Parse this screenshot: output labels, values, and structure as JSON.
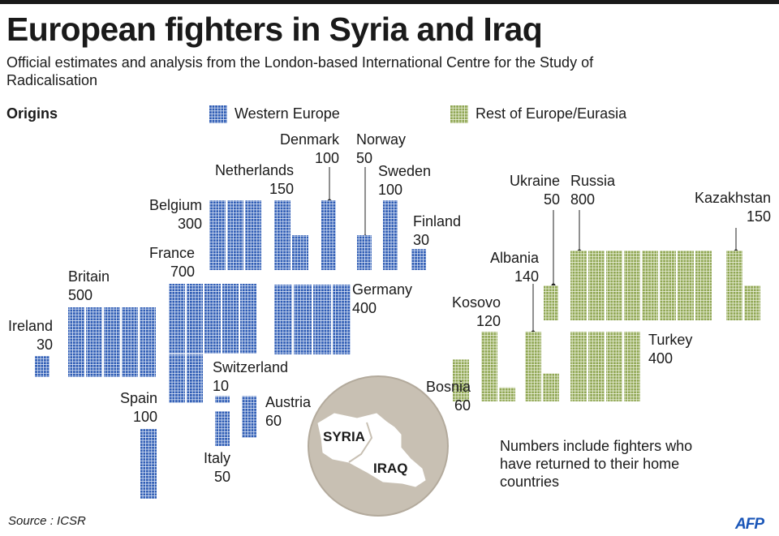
{
  "title": "European fighters in Syria and Iraq",
  "subtitle": "Official estimates and analysis from the London-based International Centre for the Study of Radicalisation",
  "legend": {
    "heading": "Origins",
    "western": "Western Europe",
    "rest": "Rest of Europe/Eurasia"
  },
  "colors": {
    "western": "#2e5cb4",
    "western_bg": "#dde6f6",
    "rest": "#8fa653",
    "rest_bg": "#eef2df",
    "map_circle": "#c8c0b3",
    "map_land": "#ffffff"
  },
  "chart_data": {
    "type": "waffle",
    "unit_note": "each small square represents a number of fighters",
    "series": [
      {
        "name": "Western Europe",
        "countries": [
          {
            "name": "Ireland",
            "value": 30
          },
          {
            "name": "Britain",
            "value": 500
          },
          {
            "name": "Spain",
            "value": 100
          },
          {
            "name": "France",
            "value": 700
          },
          {
            "name": "Belgium",
            "value": 300
          },
          {
            "name": "Netherlands",
            "value": 150
          },
          {
            "name": "Denmark",
            "value": 100
          },
          {
            "name": "Norway",
            "value": 50
          },
          {
            "name": "Sweden",
            "value": 100
          },
          {
            "name": "Finland",
            "value": 30
          },
          {
            "name": "Germany",
            "value": 400
          },
          {
            "name": "Switzerland",
            "value": 10
          },
          {
            "name": "Italy",
            "value": 50
          },
          {
            "name": "Austria",
            "value": 60
          }
        ]
      },
      {
        "name": "Rest of Europe/Eurasia",
        "countries": [
          {
            "name": "Bosnia",
            "value": 60
          },
          {
            "name": "Kosovo",
            "value": 120
          },
          {
            "name": "Albania",
            "value": 140
          },
          {
            "name": "Ukraine",
            "value": 50
          },
          {
            "name": "Russia",
            "value": 800
          },
          {
            "name": "Kazakhstan",
            "value": 150
          },
          {
            "name": "Turkey",
            "value": 400
          }
        ]
      }
    ]
  },
  "labels": {
    "ireland": {
      "name": "Ireland",
      "value": "30"
    },
    "britain": {
      "name": "Britain",
      "value": "500"
    },
    "spain": {
      "name": "Spain",
      "value": "100"
    },
    "france": {
      "name": "France",
      "value": "700"
    },
    "belgium": {
      "name": "Belgium",
      "value": "300"
    },
    "netherlands": {
      "name": "Netherlands",
      "value": "150"
    },
    "denmark": {
      "name": "Denmark",
      "value": "100"
    },
    "norway": {
      "name": "Norway",
      "value": "50"
    },
    "sweden": {
      "name": "Sweden",
      "value": "100"
    },
    "finland": {
      "name": "Finland",
      "value": "30"
    },
    "germany": {
      "name": "Germany",
      "value": "400"
    },
    "switzerland": {
      "name": "Switzerland",
      "value": "10"
    },
    "italy": {
      "name": "Italy",
      "value": "50"
    },
    "austria": {
      "name": "Austria",
      "value": "60"
    },
    "bosnia": {
      "name": "Bosnia",
      "value": "60"
    },
    "kosovo": {
      "name": "Kosovo",
      "value": "120"
    },
    "albania": {
      "name": "Albania",
      "value": "140"
    },
    "ukraine": {
      "name": "Ukraine",
      "value": "50"
    },
    "russia": {
      "name": "Russia",
      "value": "800"
    },
    "kazakhstan": {
      "name": "Kazakhstan",
      "value": "150"
    },
    "turkey": {
      "name": "Turkey",
      "value": "400"
    }
  },
  "map": {
    "syria": "SYRIA",
    "iraq": "IRAQ"
  },
  "note": "Numbers include fighters who have returned to their home countries",
  "source": "Source : ICSR",
  "logo": "AFP"
}
